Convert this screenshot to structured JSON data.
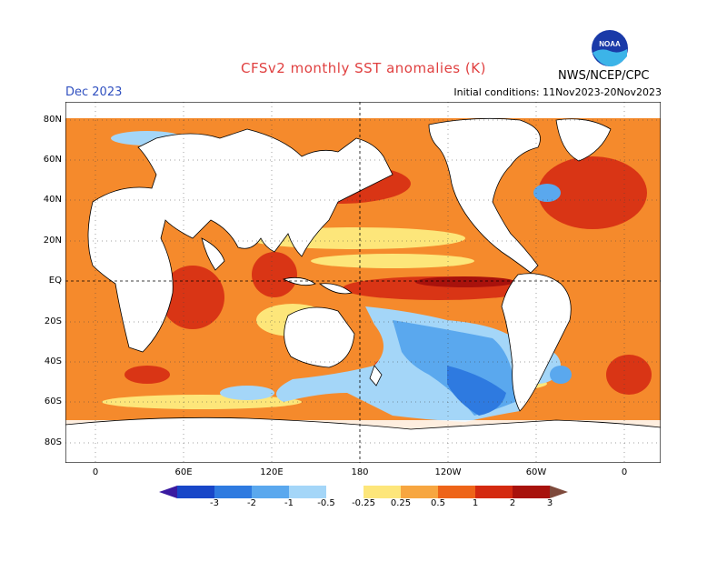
{
  "header": {
    "title": "CFSv2 monthly SST anomalies (K)",
    "month": "Dec 2023",
    "initial_conditions": "Initial conditions: 11Nov2023-20Nov2023",
    "agency": "NWS/NCEP/CPC",
    "logo_text": "NOAA",
    "logo_icon": "noaa-logo-icon"
  },
  "map": {
    "lat_labels": [
      "80N",
      "60N",
      "40N",
      "20N",
      "EQ",
      "20S",
      "40S",
      "60S",
      "80S"
    ],
    "lon_labels": [
      "0",
      "60E",
      "120E",
      "180",
      "120W",
      "60W",
      "0"
    ]
  },
  "colorbar": {
    "labels": [
      "-3",
      "-2",
      "-1",
      "-0.5",
      "-0.25",
      "0.25",
      "0.5",
      "1",
      "2",
      "3"
    ],
    "colors": [
      "#3a1aa0",
      "#1846c8",
      "#2e7ae0",
      "#5aa8ee",
      "#a4d6f8",
      "#ffffff",
      "#fde67a",
      "#f7a640",
      "#ee6418",
      "#d42a10",
      "#a8120c",
      "#7e4a3c"
    ]
  },
  "colors": {
    "title": "#e04040",
    "month": "#3050c0",
    "land": "#ffffff",
    "coast": "#000000"
  }
}
